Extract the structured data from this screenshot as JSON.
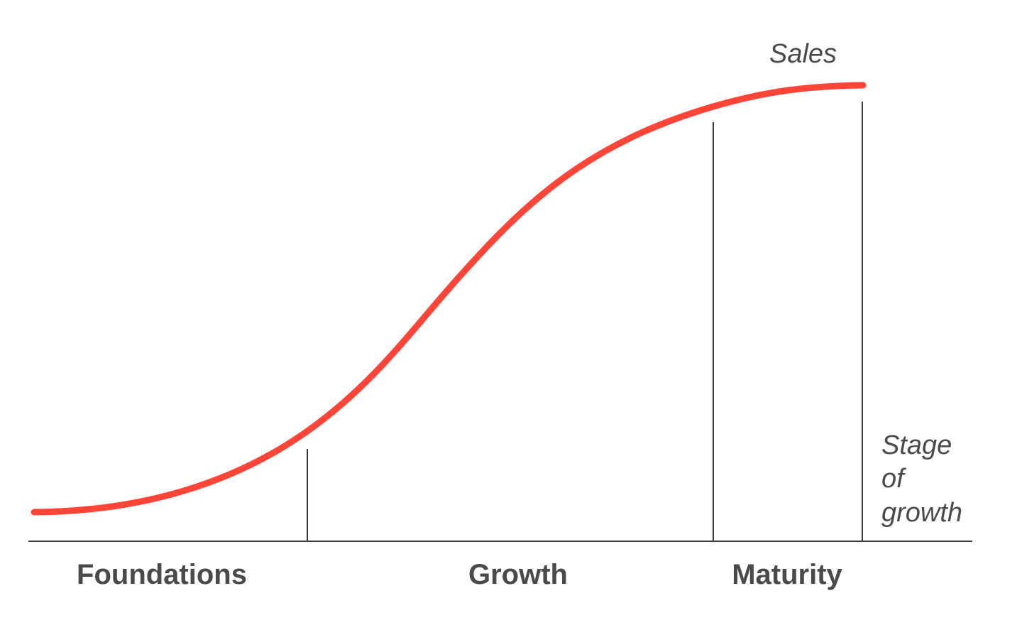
{
  "diagram": {
    "curve_label": "Sales",
    "axis_label_lines": [
      "Stage",
      "of",
      "growth"
    ],
    "stages": [
      {
        "label": "Foundations"
      },
      {
        "label": "Growth"
      },
      {
        "label": "Maturity"
      }
    ]
  },
  "colors": {
    "curve": "#ff4438",
    "lines": "#3d3d3d",
    "text": "#4a4a4a"
  }
}
